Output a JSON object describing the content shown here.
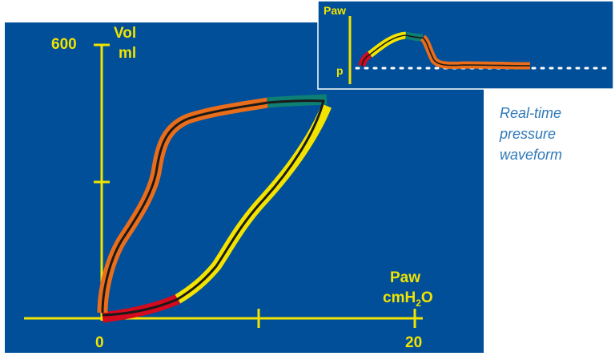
{
  "loop": {
    "y_label": "Vol",
    "y_unit": "ml",
    "y_max_label": "600",
    "x_label": "Paw",
    "x_unit_main": "cmH",
    "x_unit_sub": "2",
    "x_unit_end": "O",
    "x_min_label": "0",
    "x_max_label": "20"
  },
  "waveform": {
    "y_label": "Paw",
    "baseline_label": "p"
  },
  "caption": [
    "Real-time",
    "pressure",
    "waveform"
  ],
  "colors": {
    "background": "#004f98",
    "axis": "#f2e300",
    "phase_red": "#d40a1e",
    "phase_orange": "#ea6d1b",
    "phase_teal": "#0e7f74",
    "phase_yellow": "#f2e300",
    "trace": "#1a1a1a",
    "caption": "#2f78b8"
  },
  "chart_data": {
    "type": "line",
    "xlabel": "Paw cmH2O",
    "ylabel": "Vol ml",
    "xlim": [
      0,
      20
    ],
    "ylim": [
      0,
      600
    ]
  }
}
